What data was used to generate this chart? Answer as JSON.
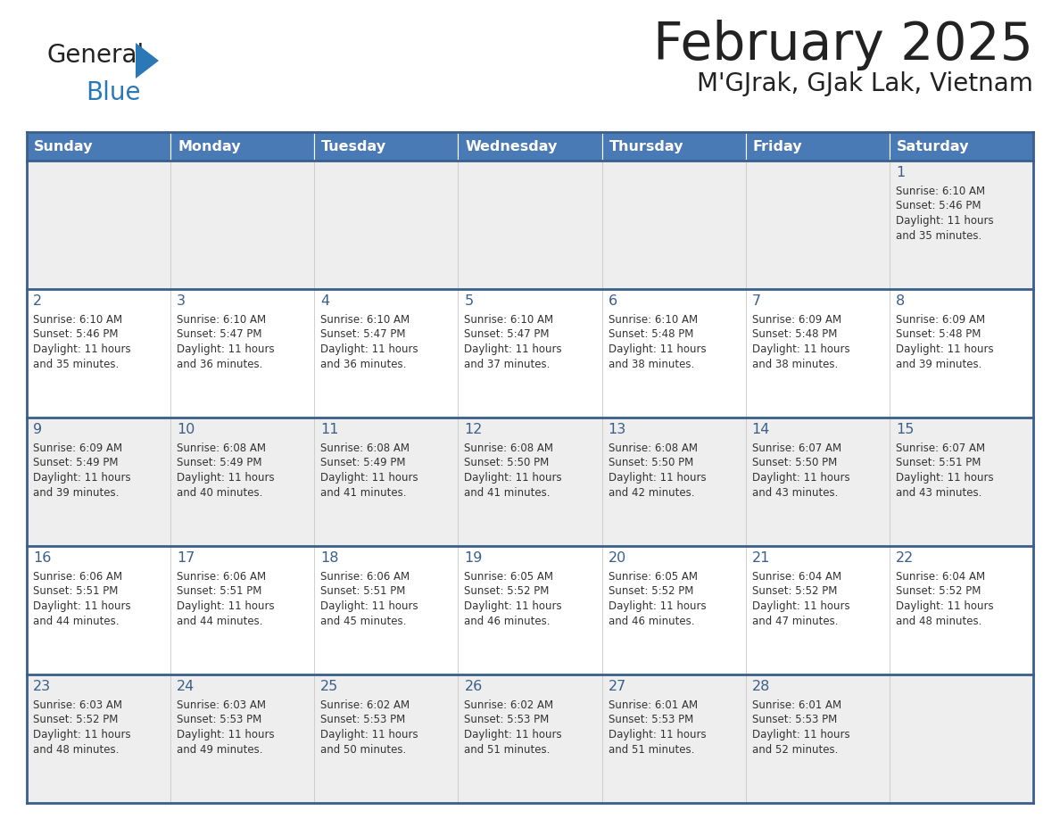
{
  "title": "February 2025",
  "subtitle": "M'GJrak, GJak Lak, Vietnam",
  "days_of_week": [
    "Sunday",
    "Monday",
    "Tuesday",
    "Wednesday",
    "Thursday",
    "Friday",
    "Saturday"
  ],
  "header_bg": "#4a7ab5",
  "header_text": "#ffffff",
  "row_bg": [
    "#eeeeee",
    "#ffffff",
    "#eeeeee",
    "#ffffff",
    "#eeeeee"
  ],
  "cell_border_color": "#4a7ab5",
  "row_border_color": "#3a5f8a",
  "day_num_color": "#3a5f8a",
  "text_color": "#333333",
  "title_color": "#222222",
  "logo_text_color": "#222222",
  "logo_blue_color": "#2a78b5",
  "calendar_data": [
    [
      null,
      null,
      null,
      null,
      null,
      null,
      {
        "day": 1,
        "sunrise": "6:10 AM",
        "sunset": "5:46 PM",
        "daylight_line1": "Daylight: 11 hours",
        "daylight_line2": "and 35 minutes."
      }
    ],
    [
      {
        "day": 2,
        "sunrise": "6:10 AM",
        "sunset": "5:46 PM",
        "daylight_line1": "Daylight: 11 hours",
        "daylight_line2": "and 35 minutes."
      },
      {
        "day": 3,
        "sunrise": "6:10 AM",
        "sunset": "5:47 PM",
        "daylight_line1": "Daylight: 11 hours",
        "daylight_line2": "and 36 minutes."
      },
      {
        "day": 4,
        "sunrise": "6:10 AM",
        "sunset": "5:47 PM",
        "daylight_line1": "Daylight: 11 hours",
        "daylight_line2": "and 36 minutes."
      },
      {
        "day": 5,
        "sunrise": "6:10 AM",
        "sunset": "5:47 PM",
        "daylight_line1": "Daylight: 11 hours",
        "daylight_line2": "and 37 minutes."
      },
      {
        "day": 6,
        "sunrise": "6:10 AM",
        "sunset": "5:48 PM",
        "daylight_line1": "Daylight: 11 hours",
        "daylight_line2": "and 38 minutes."
      },
      {
        "day": 7,
        "sunrise": "6:09 AM",
        "sunset": "5:48 PM",
        "daylight_line1": "Daylight: 11 hours",
        "daylight_line2": "and 38 minutes."
      },
      {
        "day": 8,
        "sunrise": "6:09 AM",
        "sunset": "5:48 PM",
        "daylight_line1": "Daylight: 11 hours",
        "daylight_line2": "and 39 minutes."
      }
    ],
    [
      {
        "day": 9,
        "sunrise": "6:09 AM",
        "sunset": "5:49 PM",
        "daylight_line1": "Daylight: 11 hours",
        "daylight_line2": "and 39 minutes."
      },
      {
        "day": 10,
        "sunrise": "6:08 AM",
        "sunset": "5:49 PM",
        "daylight_line1": "Daylight: 11 hours",
        "daylight_line2": "and 40 minutes."
      },
      {
        "day": 11,
        "sunrise": "6:08 AM",
        "sunset": "5:49 PM",
        "daylight_line1": "Daylight: 11 hours",
        "daylight_line2": "and 41 minutes."
      },
      {
        "day": 12,
        "sunrise": "6:08 AM",
        "sunset": "5:50 PM",
        "daylight_line1": "Daylight: 11 hours",
        "daylight_line2": "and 41 minutes."
      },
      {
        "day": 13,
        "sunrise": "6:08 AM",
        "sunset": "5:50 PM",
        "daylight_line1": "Daylight: 11 hours",
        "daylight_line2": "and 42 minutes."
      },
      {
        "day": 14,
        "sunrise": "6:07 AM",
        "sunset": "5:50 PM",
        "daylight_line1": "Daylight: 11 hours",
        "daylight_line2": "and 43 minutes."
      },
      {
        "day": 15,
        "sunrise": "6:07 AM",
        "sunset": "5:51 PM",
        "daylight_line1": "Daylight: 11 hours",
        "daylight_line2": "and 43 minutes."
      }
    ],
    [
      {
        "day": 16,
        "sunrise": "6:06 AM",
        "sunset": "5:51 PM",
        "daylight_line1": "Daylight: 11 hours",
        "daylight_line2": "and 44 minutes."
      },
      {
        "day": 17,
        "sunrise": "6:06 AM",
        "sunset": "5:51 PM",
        "daylight_line1": "Daylight: 11 hours",
        "daylight_line2": "and 44 minutes."
      },
      {
        "day": 18,
        "sunrise": "6:06 AM",
        "sunset": "5:51 PM",
        "daylight_line1": "Daylight: 11 hours",
        "daylight_line2": "and 45 minutes."
      },
      {
        "day": 19,
        "sunrise": "6:05 AM",
        "sunset": "5:52 PM",
        "daylight_line1": "Daylight: 11 hours",
        "daylight_line2": "and 46 minutes."
      },
      {
        "day": 20,
        "sunrise": "6:05 AM",
        "sunset": "5:52 PM",
        "daylight_line1": "Daylight: 11 hours",
        "daylight_line2": "and 46 minutes."
      },
      {
        "day": 21,
        "sunrise": "6:04 AM",
        "sunset": "5:52 PM",
        "daylight_line1": "Daylight: 11 hours",
        "daylight_line2": "and 47 minutes."
      },
      {
        "day": 22,
        "sunrise": "6:04 AM",
        "sunset": "5:52 PM",
        "daylight_line1": "Daylight: 11 hours",
        "daylight_line2": "and 48 minutes."
      }
    ],
    [
      {
        "day": 23,
        "sunrise": "6:03 AM",
        "sunset": "5:52 PM",
        "daylight_line1": "Daylight: 11 hours",
        "daylight_line2": "and 48 minutes."
      },
      {
        "day": 24,
        "sunrise": "6:03 AM",
        "sunset": "5:53 PM",
        "daylight_line1": "Daylight: 11 hours",
        "daylight_line2": "and 49 minutes."
      },
      {
        "day": 25,
        "sunrise": "6:02 AM",
        "sunset": "5:53 PM",
        "daylight_line1": "Daylight: 11 hours",
        "daylight_line2": "and 50 minutes."
      },
      {
        "day": 26,
        "sunrise": "6:02 AM",
        "sunset": "5:53 PM",
        "daylight_line1": "Daylight: 11 hours",
        "daylight_line2": "and 51 minutes."
      },
      {
        "day": 27,
        "sunrise": "6:01 AM",
        "sunset": "5:53 PM",
        "daylight_line1": "Daylight: 11 hours",
        "daylight_line2": "and 51 minutes."
      },
      {
        "day": 28,
        "sunrise": "6:01 AM",
        "sunset": "5:53 PM",
        "daylight_line1": "Daylight: 11 hours",
        "daylight_line2": "and 52 minutes."
      },
      null
    ]
  ]
}
